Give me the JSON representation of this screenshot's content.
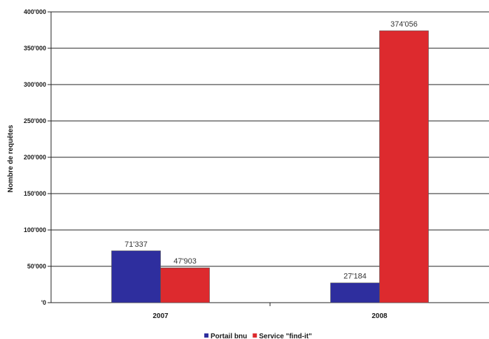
{
  "chart_data": {
    "type": "bar",
    "categories": [
      "2007",
      "2008"
    ],
    "series": [
      {
        "name": "Portail bnu",
        "color": "#2e2e9e",
        "values": [
          71337,
          27184
        ],
        "labels": [
          "71'337",
          "27'184"
        ]
      },
      {
        "name": "Service \"find-it\"",
        "color": "#dd2a2e",
        "values": [
          47903,
          374056
        ],
        "labels": [
          "47'903",
          "374'056"
        ]
      }
    ],
    "ylabel": "Nombre de requêtes",
    "ylim": [
      0,
      400000
    ],
    "yticks": [
      0,
      50000,
      100000,
      150000,
      200000,
      250000,
      300000,
      350000,
      400000
    ],
    "ytick_labels": [
      "'0",
      "50'000",
      "100'000",
      "150'000",
      "200'000",
      "250'000",
      "300'000",
      "350'000",
      "400'000"
    ],
    "grid": true,
    "legend_position": "bottom"
  }
}
